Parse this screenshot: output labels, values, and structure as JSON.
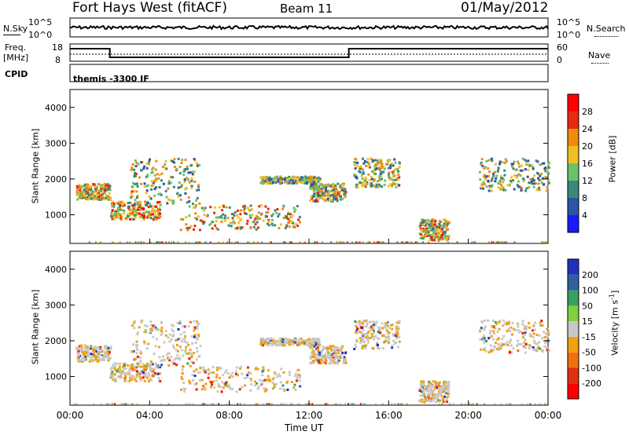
{
  "header": {
    "station": "Fort Hays West (fitACF)",
    "beam": "Beam 11",
    "date": "01/May/2012"
  },
  "noise_panel": {
    "left_label": "N.Sky",
    "right_label": "N.Search",
    "left_ticks": [
      "10^5",
      "10^0"
    ],
    "right_ticks": [
      "10^5",
      "10^0"
    ]
  },
  "freq_panel": {
    "left_label_1": "Freq.",
    "left_label_2": "[MHz]",
    "left_ticks": [
      "18",
      "8"
    ],
    "right_label": "Nave",
    "right_ticks": [
      "60",
      "0"
    ],
    "cpid_label": "CPID",
    "cpid_text": "themis -3300 IF"
  },
  "chart_data": [
    {
      "type": "heatmap",
      "name": "power",
      "ylabel": "Slant Range [km]",
      "xlabel": "",
      "y_ticks": [
        "1000",
        "2000",
        "3000",
        "4000"
      ],
      "ylim": [
        200,
        4500
      ],
      "colorbar_label": "Power [dB]",
      "colorbar_ticks": [
        "4",
        "8",
        "12",
        "16",
        "20",
        "24",
        "28"
      ],
      "colors": [
        "#1a1aff",
        "#2a55a8",
        "#3a8a7a",
        "#6cc26a",
        "#f0c020",
        "#f08a10",
        "#e82a10",
        "#ff0000"
      ]
    },
    {
      "type": "heatmap",
      "name": "velocity",
      "ylabel": "Slant Range [km]",
      "xlabel": "Time UT",
      "y_ticks": [
        "1000",
        "2000",
        "3000",
        "4000"
      ],
      "ylim": [
        200,
        4500
      ],
      "x_ticks": [
        "00:00",
        "04:00",
        "08:00",
        "12:00",
        "16:00",
        "20:00",
        "00:00"
      ],
      "colorbar_label": "Velocity [m s",
      "colorbar_unit_sup": "-1",
      "colorbar_ticks": [
        "200",
        "100",
        "50",
        "15",
        "-15",
        "-50",
        "-100",
        "-200"
      ],
      "colors": [
        "#2030c0",
        "#3060a0",
        "#3aa060",
        "#80d040",
        "#c8c8c8",
        "#f0a010",
        "#f07010",
        "#e03010",
        "#ff0000"
      ]
    }
  ],
  "x_axis": {
    "label": "Time UT",
    "ticks": [
      "00:00",
      "04:00",
      "08:00",
      "12:00",
      "16:00",
      "20:00",
      "00:00"
    ]
  }
}
